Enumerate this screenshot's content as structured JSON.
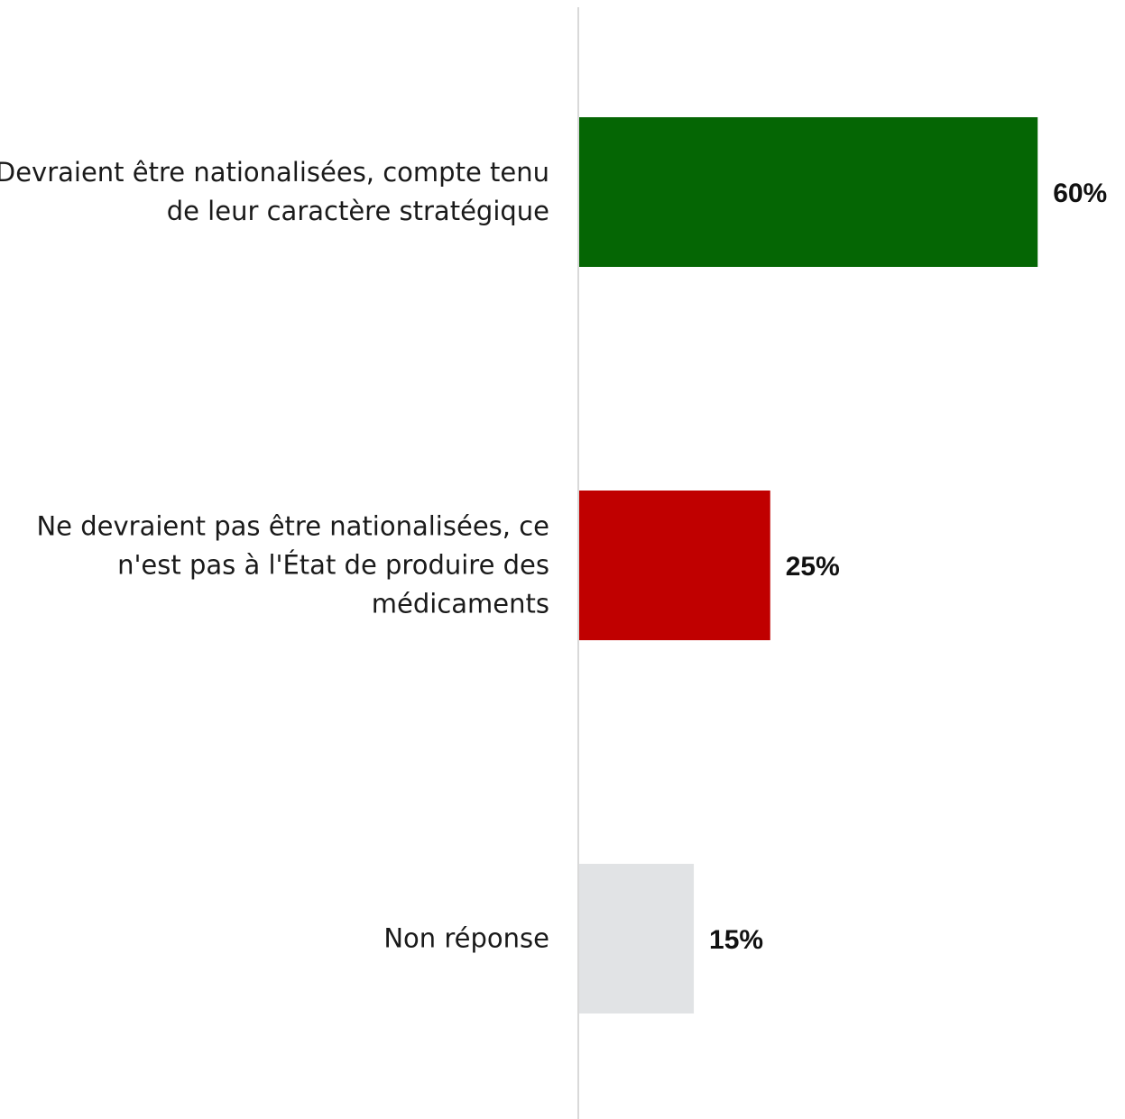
{
  "chart_data": {
    "type": "bar",
    "orientation": "horizontal",
    "categories": [
      "Devraient être nationalisées, compte tenu de leur caractère stratégique",
      "Ne devraient pas être nationalisées, ce n'est pas à l'État de produire des médicaments",
      "Non réponse"
    ],
    "category_lines": [
      [
        "Devraient être nationalisées, compte tenu",
        "de leur caractère stratégique"
      ],
      [
        "Ne devraient pas être nationalisées, ce",
        "n'est pas à l'État de produire des",
        "médicaments"
      ],
      [
        "Non réponse"
      ]
    ],
    "values": [
      60,
      25,
      15
    ],
    "value_labels": [
      "60%",
      "25%",
      "15%"
    ],
    "colors": [
      "#056604",
      "#C00000",
      "#E1E3E5"
    ],
    "title": "",
    "xlabel": "",
    "ylabel": "",
    "xlim": [
      0,
      100
    ],
    "axis_color": "#D9D9D9",
    "grid": false,
    "legend": "none"
  }
}
